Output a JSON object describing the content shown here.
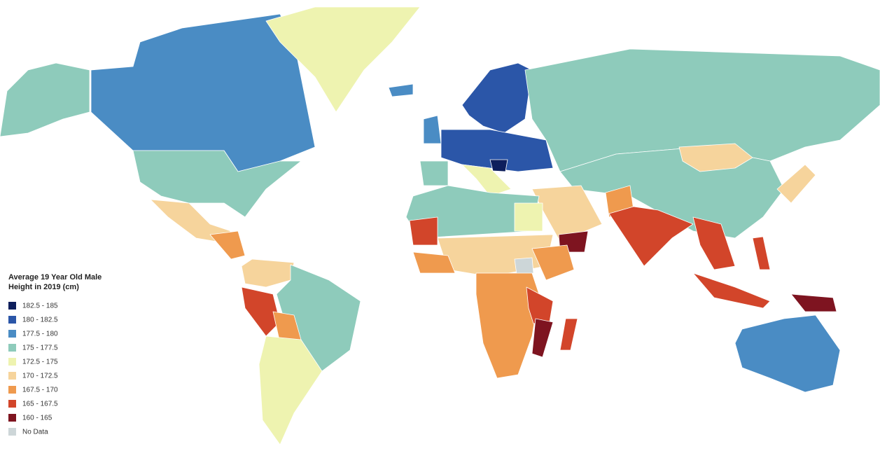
{
  "legend": {
    "title_lines": [
      "Average 19 Year Old Male",
      "Height in 2019 (cm)"
    ],
    "items": [
      {
        "label": "182.5 - 185",
        "color": "#0e1f5c"
      },
      {
        "label": "180 - 182.5",
        "color": "#2b56a8"
      },
      {
        "label": "177.5 - 180",
        "color": "#4a8cc4"
      },
      {
        "label": "175 - 177.5",
        "color": "#8ecbbb"
      },
      {
        "label": "172.5 - 175",
        "color": "#eef3b0"
      },
      {
        "label": "170 - 172.5",
        "color": "#f6d49c"
      },
      {
        "label": "167.5 - 170",
        "color": "#ef9a4e"
      },
      {
        "label": "165 - 167.5",
        "color": "#d2452a"
      },
      {
        "label": "160 - 165",
        "color": "#7e1420"
      },
      {
        "label": "No Data",
        "color": "#cdd6d8"
      }
    ]
  }
}
